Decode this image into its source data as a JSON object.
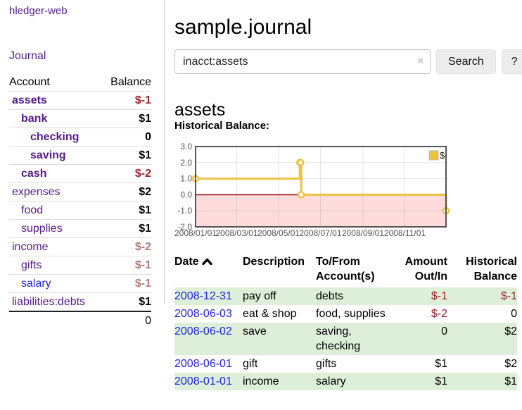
{
  "brand": "hledger-web",
  "colors": {
    "link_purple": "#551a8b",
    "link_blue": "#2222dd",
    "negative_red": "#992525",
    "negative_faded_red": "#b47878",
    "row_stripe_green": "#ddefd9",
    "chart_line_gold": "#edc240"
  },
  "sidebar": {
    "journal_link": "Journal",
    "table": {
      "account_header": "Account",
      "balance_header": "Balance",
      "rows": [
        {
          "name": "assets",
          "balance": "$-1"
        },
        {
          "name": "bank",
          "balance": "$1"
        },
        {
          "name": "checking",
          "balance": "0"
        },
        {
          "name": "saving",
          "balance": "$1"
        },
        {
          "name": "cash",
          "balance": "$-2"
        },
        {
          "name": "expenses",
          "balance": "$2"
        },
        {
          "name": "food",
          "balance": "$1"
        },
        {
          "name": "supplies",
          "balance": "$1"
        },
        {
          "name": "income",
          "balance": "$-2"
        },
        {
          "name": "gifts",
          "balance": "$-1"
        },
        {
          "name": "salary",
          "balance": "$-1"
        },
        {
          "name": "liabilities:debts",
          "balance": "$1"
        }
      ],
      "total": "0"
    }
  },
  "header": {
    "title": "sample.journal"
  },
  "search": {
    "value": "inacct:assets",
    "clear_label": "×",
    "search_button": "Search",
    "help_button": "?"
  },
  "section": {
    "account_heading": "assets",
    "chart_title": "Historical Balance:"
  },
  "chart_data": {
    "type": "line",
    "step": true,
    "title": "Historical Balance",
    "legend": [
      {
        "label": "$",
        "color": "#edc240"
      }
    ],
    "legend_position": "top-right",
    "x": [
      "2008-01-01",
      "2008-06-01",
      "2008-06-02",
      "2008-06-03",
      "2008-12-31"
    ],
    "y": [
      1,
      2,
      2,
      0,
      -1
    ],
    "x_range": [
      "2008-01-01",
      "2008-12-31"
    ],
    "ylim": [
      -2,
      3
    ],
    "ytick_values": [
      3,
      2,
      1,
      0,
      -1,
      -2
    ],
    "yticks": [
      "3.0",
      "2.0",
      "1.0",
      "0.0",
      "-1.0",
      "-2.0"
    ],
    "xticks": [
      {
        "label": "2008/01/01",
        "date": "2008-01-01"
      },
      {
        "label": "2008/03/01",
        "date": "2008-03-01"
      },
      {
        "label": "2008/05/01",
        "date": "2008-05-01"
      },
      {
        "label": "2008/07/01",
        "date": "2008-07-01"
      },
      {
        "label": "2008/09/01",
        "date": "2008-09-01"
      },
      {
        "label": "2008/11/01",
        "date": "2008-11-01"
      }
    ],
    "grid": true,
    "negative_region_fill": "#ffdcdc",
    "zero_line_color": "#9a1616",
    "line_color": "#edc240",
    "marker": "open-circle"
  },
  "register": {
    "headers": {
      "date": "Date",
      "description": "Description",
      "accounts": "To/From Account(s)",
      "amount": "Amount Out/In",
      "balance": "Historical Balance"
    },
    "rows": [
      {
        "date": "2008-12-31",
        "description": "pay off",
        "accounts": "debts",
        "amount": "$-1",
        "balance": "$-1"
      },
      {
        "date": "2008-06-03",
        "description": "eat & shop",
        "accounts": "food, supplies",
        "amount": "$-2",
        "balance": "0"
      },
      {
        "date": "2008-06-02",
        "description": "save",
        "accounts": "saving, checking",
        "amount": "0",
        "balance": "$2"
      },
      {
        "date": "2008-06-01",
        "description": "gift",
        "accounts": "gifts",
        "amount": "$1",
        "balance": "$2"
      },
      {
        "date": "2008-01-01",
        "description": "income",
        "accounts": "salary",
        "amount": "$1",
        "balance": "$1"
      }
    ]
  }
}
